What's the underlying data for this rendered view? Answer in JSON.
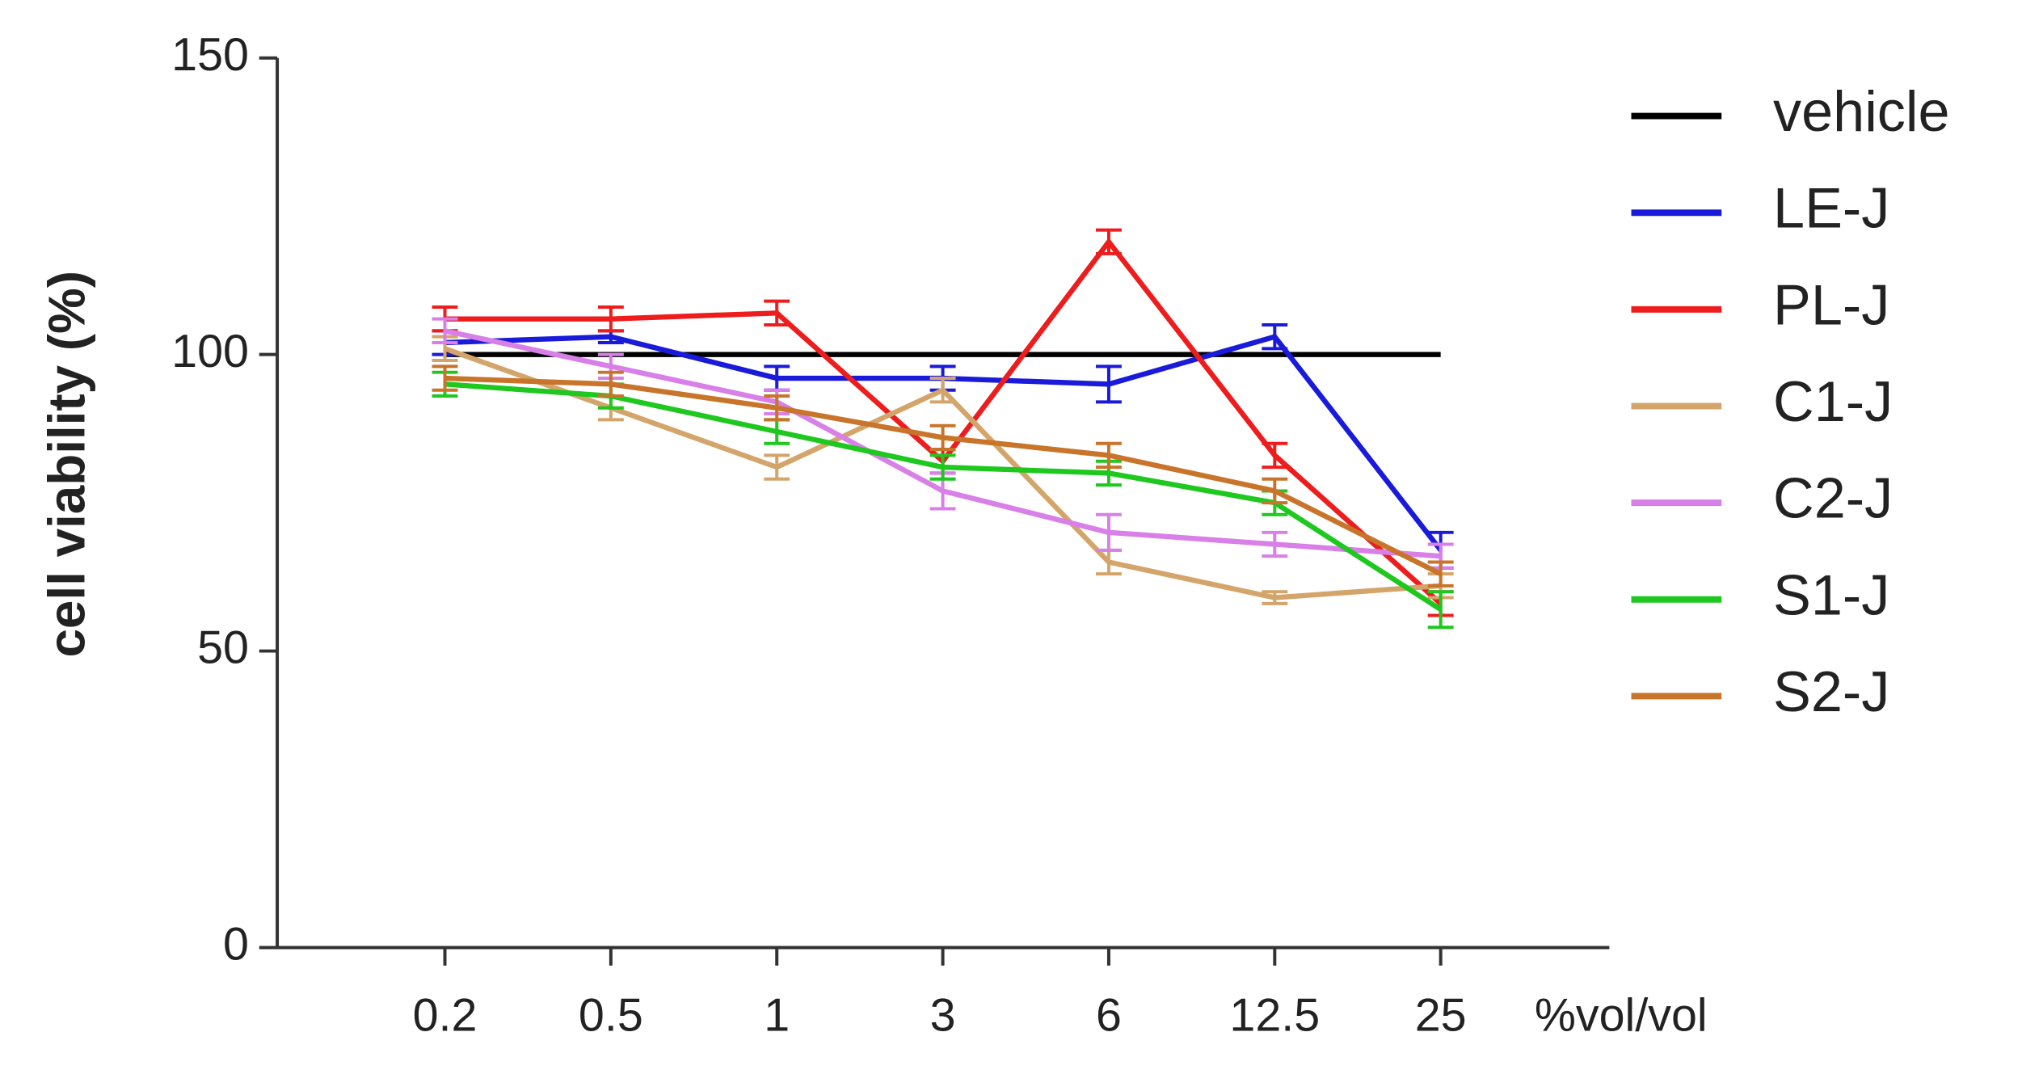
{
  "chart_data": {
    "type": "line",
    "y_label": "cell viability (%)",
    "x_label": "%vol/vol",
    "categories": [
      "0.2",
      "0.5",
      "1",
      "3",
      "6",
      "12.5",
      "25"
    ],
    "ylim": [
      0,
      150
    ],
    "yticks": [
      0,
      50,
      100,
      150
    ],
    "legend": "right",
    "series": [
      {
        "name": "vehicle",
        "color": "#000000",
        "values": [
          100,
          100,
          100,
          100,
          100,
          100,
          100
        ]
      },
      {
        "name": "LE-J",
        "color": "#1a1adb",
        "values": [
          102,
          103,
          96,
          96,
          95,
          103,
          67
        ],
        "errors": [
          2,
          1,
          2,
          2,
          3,
          2,
          3
        ]
      },
      {
        "name": "PL-J",
        "color": "#ee1c1c",
        "values": [
          106,
          106,
          107,
          82,
          119,
          83,
          58
        ],
        "errors": [
          2,
          2,
          2,
          2,
          2,
          2,
          2
        ]
      },
      {
        "name": "C1-J",
        "color": "#d4a56a",
        "values": [
          101,
          91,
          81,
          94,
          65,
          59,
          61
        ],
        "errors": [
          2,
          2,
          2,
          2,
          2,
          1,
          2
        ]
      },
      {
        "name": "C2-J",
        "color": "#d87fe8",
        "values": [
          104,
          98,
          92,
          77,
          70,
          68,
          66
        ],
        "errors": [
          2,
          2,
          2,
          3,
          3,
          2,
          2
        ]
      },
      {
        "name": "S1-J",
        "color": "#1ec81e",
        "values": [
          95,
          93,
          87,
          81,
          80,
          75,
          57
        ],
        "errors": [
          2,
          2,
          2,
          2,
          2,
          2,
          3
        ]
      },
      {
        "name": "S2-J",
        "color": "#c8742a",
        "values": [
          96,
          95,
          91,
          86,
          83,
          77,
          63
        ],
        "errors": [
          2,
          2,
          2,
          2,
          2,
          2,
          2
        ]
      }
    ]
  }
}
